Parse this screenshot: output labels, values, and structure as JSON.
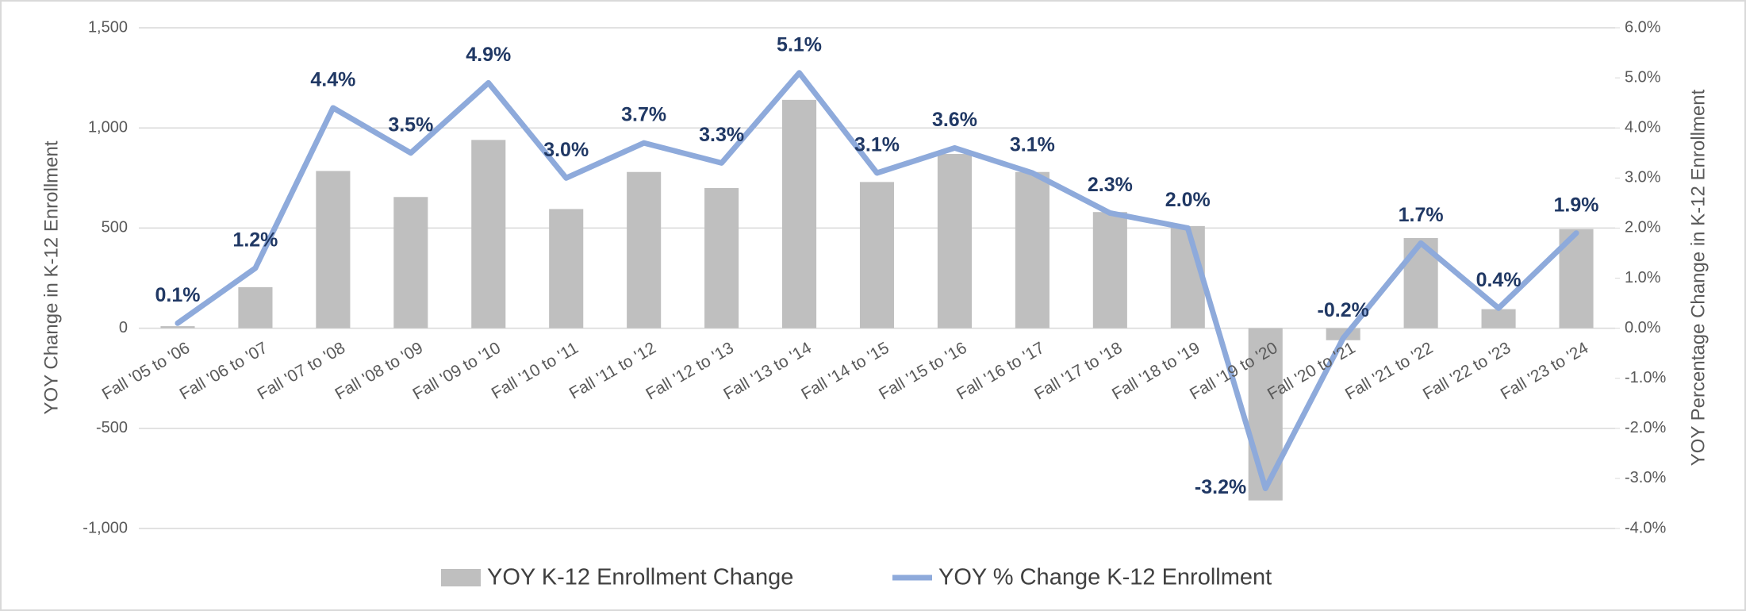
{
  "chart_data": {
    "type": "bar_line",
    "y_label": "YOY Change in K-12 Enrollment",
    "y2_label": "YOY Percentage Change in K-12 Enrollment",
    "categories": [
      "Fall '05 to '06",
      "Fall '06 to '07",
      "Fall '07 to '08",
      "Fall '08 to '09",
      "Fall '09 to '10",
      "Fall '10 to '11",
      "Fall '11 to '12",
      "Fall '12 to '13",
      "Fall '13 to '14",
      "Fall '14 to '15",
      "Fall '15 to '16",
      "Fall '16 to '17",
      "Fall '17 to '18",
      "Fall '18 to '19",
      "Fall '19 to '20",
      "Fall '20 to '21",
      "Fall '21 to '22",
      "Fall '22 to '23",
      "Fall '23 to '24"
    ],
    "series": [
      {
        "name": "YOY K-12 Enrollment Change",
        "type": "bar",
        "color": "#bfbfbf",
        "values": [
          10,
          205,
          785,
          655,
          940,
          595,
          780,
          700,
          1140,
          730,
          870,
          780,
          580,
          510,
          -860,
          -60,
          450,
          95,
          495
        ]
      },
      {
        "name": "YOY % Change K-12 Enrollment",
        "type": "line",
        "axis": "y2",
        "color": "#8eaadb",
        "values": [
          0.1,
          1.2,
          4.4,
          3.5,
          4.9,
          3.0,
          3.7,
          3.3,
          5.1,
          3.1,
          3.6,
          3.1,
          2.3,
          2.0,
          -3.2,
          -0.2,
          1.7,
          0.4,
          1.9
        ],
        "value_labels": [
          "0.1%",
          "1.2%",
          "4.4%",
          "3.5%",
          "4.9%",
          "3.0%",
          "3.7%",
          "3.3%",
          "5.1%",
          "3.1%",
          "3.6%",
          "3.1%",
          "2.3%",
          "2.0%",
          "-3.2%",
          "-0.2%",
          "1.7%",
          "0.4%",
          "1.9%"
        ]
      }
    ],
    "ylim": [
      -1000,
      1500
    ],
    "yticks": [
      {
        "value": -1000,
        "label": "-1,000"
      },
      -500,
      0,
      500,
      {
        "value": 1000,
        "label": "1,000"
      },
      {
        "value": 1500,
        "label": "1,500"
      }
    ],
    "y2lim": [
      -4,
      6
    ],
    "y2ticks": [
      {
        "value": -4,
        "label": "-4.0%"
      },
      {
        "value": -3,
        "label": "-3.0%"
      },
      {
        "value": -2,
        "label": "-2.0%"
      },
      {
        "value": -1,
        "label": "-1.0%"
      },
      {
        "value": 0,
        "label": "0.0%"
      },
      {
        "value": 1,
        "label": "1.0%"
      },
      {
        "value": 2,
        "label": "2.0%"
      },
      {
        "value": 3,
        "label": "3.0%"
      },
      {
        "value": 4,
        "label": "4.0%"
      },
      {
        "value": 5,
        "label": "5.0%"
      },
      {
        "value": 6,
        "label": "6.0%"
      }
    ],
    "grid": true
  }
}
